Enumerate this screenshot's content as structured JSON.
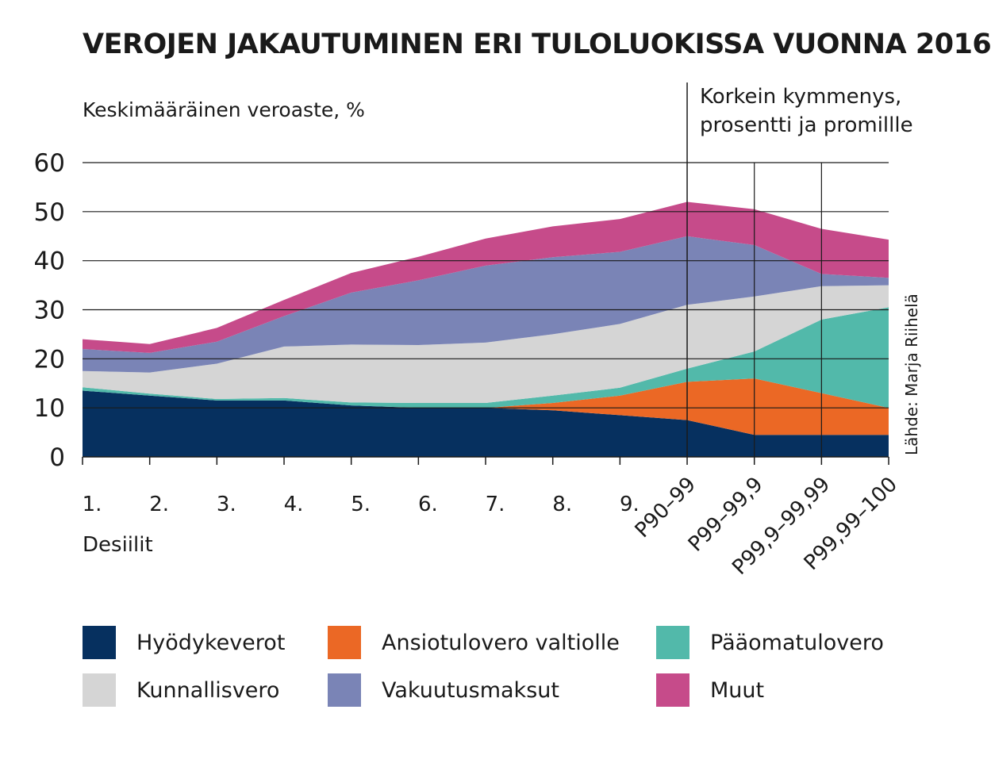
{
  "chart_data": {
    "type": "area",
    "stacked": true,
    "title": "VEROJEN JAKAUTUMINEN ERI TULOLUOKISSA VUONNA 2016",
    "ylabel": "Keskimääräinen veroaste, %",
    "xlabel": "Desiilit",
    "top_group_label": [
      "Korkein kymmenys,",
      "prosentti ja promillle"
    ],
    "source": "Lähde: Marja Riihelä",
    "ylim": [
      0,
      60
    ],
    "yticks": [
      0,
      10,
      20,
      30,
      40,
      50,
      60
    ],
    "grid": true,
    "categories": [
      "1.",
      "2.",
      "3.",
      "4.",
      "5.",
      "6.",
      "7.",
      "8.",
      "9.",
      "P90–99",
      "P99–99,9",
      "P99,9–99,99",
      "P99,99–100"
    ],
    "series": [
      {
        "name": "Hyödykeverot",
        "color": "#06305f",
        "values": [
          13.5,
          12.5,
          11.5,
          11.5,
          10.5,
          10,
          10,
          9.5,
          8.5,
          7.5,
          4.5,
          4.5,
          4.5
        ]
      },
      {
        "name": "Ansiotulovero valtiolle",
        "color": "#eb6825",
        "values": [
          0,
          0,
          0,
          0,
          0,
          0,
          0,
          1.5,
          4,
          7.8,
          11.5,
          8.5,
          5.5
        ]
      },
      {
        "name": "Pääomatulovero",
        "color": "#52b9aa",
        "values": [
          0.7,
          0.4,
          0.3,
          0.5,
          0.6,
          1,
          1,
          1.5,
          1.6,
          2.7,
          5.5,
          15,
          20.5
        ]
      },
      {
        "name": "Kunnallisvero",
        "color": "#d5d5d5",
        "values": [
          3.3,
          4.3,
          7.2,
          10.5,
          11.8,
          11.8,
          12.3,
          12.5,
          13,
          13,
          11.2,
          6.8,
          4.5
        ]
      },
      {
        "name": "Vakuutusmaksut",
        "color": "#7a84b6",
        "values": [
          4.5,
          4,
          4.5,
          6.2,
          10.6,
          13.2,
          15.7,
          15.7,
          14.7,
          14,
          10.5,
          2.5,
          1.5
        ]
      },
      {
        "name": "Muut",
        "color": "#c64b8a",
        "values": [
          2,
          1.8,
          2.8,
          3.3,
          4,
          4.8,
          5.5,
          6.3,
          6.7,
          7,
          7.3,
          9.2,
          7.8
        ]
      }
    ],
    "legend_placement": "bottom"
  },
  "legend": [
    {
      "label": "Hyödykeverot",
      "color": "#06305f"
    },
    {
      "label": "Ansiotulovero valtiolle",
      "color": "#eb6825"
    },
    {
      "label": "Pääomatulovero",
      "color": "#52b9aa"
    },
    {
      "label": "Kunnallisvero",
      "color": "#d5d5d5"
    },
    {
      "label": "Vakuutusmaksut",
      "color": "#7a84b6"
    },
    {
      "label": "Muut",
      "color": "#c64b8a"
    }
  ]
}
